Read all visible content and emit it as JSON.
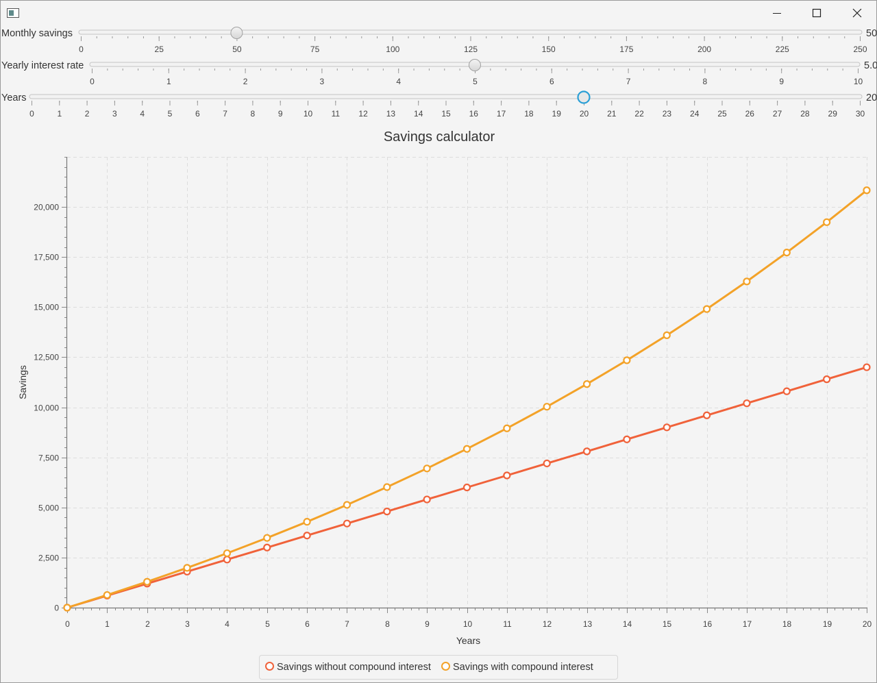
{
  "window": {
    "icon": "app-window-icon",
    "controls": [
      "minimize-icon",
      "maximize-icon",
      "close-icon"
    ]
  },
  "sliders": [
    {
      "id": "monthly",
      "label": "Monthly savings",
      "value_text": "50",
      "value": 50,
      "min": 0,
      "max": 250,
      "major_tick": 25,
      "minor_tick": 5,
      "tick_labels": [
        "0",
        "25",
        "50",
        "75",
        "100",
        "125",
        "150",
        "175",
        "200",
        "225",
        "250"
      ],
      "focused": false
    },
    {
      "id": "interest",
      "label": "Yearly interest rate",
      "value_text": "5.0",
      "value": 5,
      "min": 0,
      "max": 10,
      "major_tick": 1,
      "minor_tick": 0.2,
      "tick_labels": [
        "0",
        "1",
        "2",
        "3",
        "4",
        "5",
        "6",
        "7",
        "8",
        "9",
        "10"
      ],
      "focused": false
    },
    {
      "id": "years",
      "label": "Years",
      "value_text": "20",
      "value": 20,
      "min": 0,
      "max": 30,
      "major_tick": 1,
      "minor_tick": 1,
      "tick_labels": [
        "0",
        "1",
        "2",
        "3",
        "4",
        "5",
        "6",
        "7",
        "8",
        "9",
        "10",
        "11",
        "12",
        "13",
        "14",
        "15",
        "16",
        "17",
        "18",
        "19",
        "20",
        "21",
        "22",
        "23",
        "24",
        "25",
        "26",
        "27",
        "28",
        "29",
        "30"
      ],
      "focused": true
    }
  ],
  "chart_data": {
    "type": "line",
    "title": "Savings calculator",
    "xlabel": "Years",
    "ylabel": "Savings",
    "x": [
      0,
      1,
      2,
      3,
      4,
      5,
      6,
      7,
      8,
      9,
      10,
      11,
      12,
      13,
      14,
      15,
      16,
      17,
      18,
      19,
      20
    ],
    "xlim": [
      0,
      20
    ],
    "ylim": [
      0,
      22500
    ],
    "x_tick_labels": [
      "0",
      "1",
      "2",
      "3",
      "4",
      "5",
      "6",
      "7",
      "8",
      "9",
      "10",
      "11",
      "12",
      "13",
      "14",
      "15",
      "16",
      "17",
      "18",
      "19",
      "20"
    ],
    "y_ticks": [
      0,
      2500,
      5000,
      7500,
      10000,
      12500,
      15000,
      17500,
      20000
    ],
    "y_tick_labels": [
      "0",
      "2,500",
      "5,000",
      "7,500",
      "10,000",
      "12,500",
      "15,000",
      "17,500",
      "20,000"
    ],
    "grid": true,
    "legend_position": "bottom",
    "series": [
      {
        "name": "Savings without compound interest",
        "color": "#f0623a",
        "values": [
          0,
          600,
          1200,
          1800,
          2400,
          3000,
          3600,
          4200,
          4800,
          5400,
          6000,
          6600,
          7200,
          7800,
          8400,
          9000,
          9600,
          10200,
          10800,
          11400,
          12000
        ]
      },
      {
        "name": "Savings with compound interest",
        "color": "#f3a228",
        "values": [
          0,
          630,
          1292,
          1987,
          2716,
          3482,
          4286,
          5130,
          6017,
          6948,
          7925,
          8951,
          10029,
          11160,
          12348,
          13596,
          14905,
          16281,
          17725,
          19241,
          20833
        ]
      }
    ]
  }
}
